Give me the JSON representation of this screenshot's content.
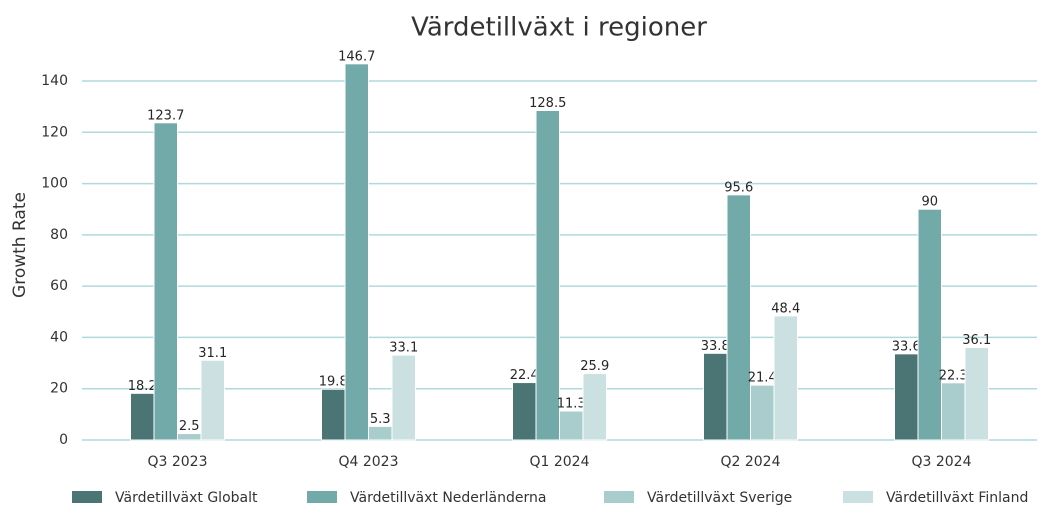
{
  "chart_data": {
    "type": "bar",
    "title": "Värdetillväxt i regioner",
    "y_label": "Growth Rate",
    "categories": [
      "Q3 2023",
      "Q4 2023",
      "Q1 2024",
      "Q2 2024",
      "Q3 2024"
    ],
    "series": [
      {
        "name": "Värdetillväxt Globalt",
        "color": "#4a7574",
        "values": [
          18.2,
          19.8,
          22.4,
          33.8,
          33.6
        ]
      },
      {
        "name": "Värdetillväxt Nederländerna",
        "color": "#72a9a9",
        "values": [
          123.7,
          146.7,
          128.5,
          95.6,
          90
        ]
      },
      {
        "name": "Värdetillväxt Sverige",
        "color": "#a9cccd",
        "values": [
          2.5,
          5.3,
          11.3,
          21.4,
          22.3
        ]
      },
      {
        "name": "Värdetillväxt Finland",
        "color": "#cae0e1",
        "values": [
          31.1,
          33.1,
          25.9,
          48.4,
          36.1
        ]
      }
    ],
    "ylim": [
      0,
      150
    ],
    "yticks": [
      0,
      20,
      40,
      60,
      80,
      100,
      120,
      140
    ],
    "grid": true,
    "legend": "bottom"
  }
}
